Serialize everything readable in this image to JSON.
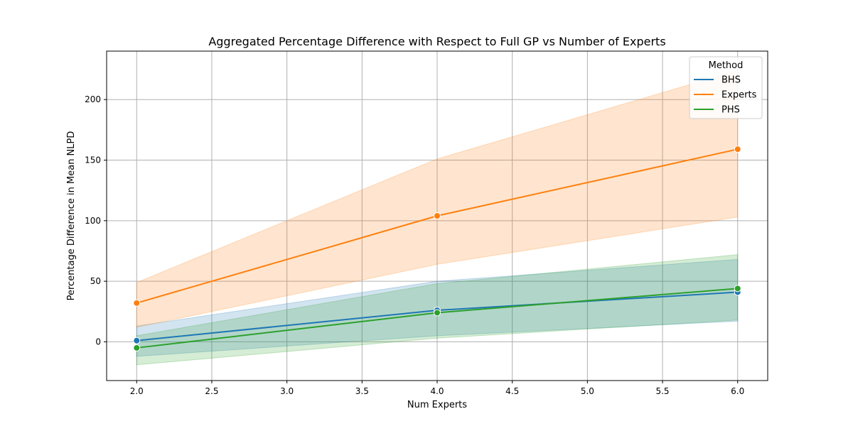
{
  "chart_data": {
    "type": "line",
    "title": "Aggregated Percentage Difference with Respect to Full GP vs Number of Experts",
    "xlabel": "Num Experts",
    "ylabel": "Percentage Difference in Mean NLPD",
    "xlim": [
      1.8,
      6.2
    ],
    "ylim": [
      -32,
      240
    ],
    "xticks": [
      2.0,
      2.5,
      3.0,
      3.5,
      4.0,
      4.5,
      5.0,
      5.5,
      6.0
    ],
    "xtick_labels": [
      "2.0",
      "2.5",
      "3.0",
      "3.5",
      "4.0",
      "4.5",
      "5.0",
      "5.5",
      "6.0"
    ],
    "yticks": [
      0,
      50,
      100,
      150,
      200
    ],
    "ytick_labels": [
      "0",
      "50",
      "100",
      "150",
      "200"
    ],
    "grid": true,
    "legend": {
      "title": "Method",
      "position": "top-right"
    },
    "series": [
      {
        "name": "BHS",
        "color": "#1f77b4",
        "x": [
          2,
          4,
          6
        ],
        "y": [
          1,
          26,
          41
        ],
        "ci_low": [
          -12,
          5,
          17
        ],
        "ci_high": [
          13,
          50,
          68
        ]
      },
      {
        "name": "Experts",
        "color": "#ff7f0e",
        "x": [
          2,
          4,
          6
        ],
        "y": [
          32,
          104,
          159
        ],
        "ci_low": [
          12,
          64,
          103
        ],
        "ci_high": [
          49,
          151,
          224
        ]
      },
      {
        "name": "PHS",
        "color": "#2ca02c",
        "x": [
          2,
          4,
          6
        ],
        "y": [
          -5,
          24,
          44
        ],
        "ci_low": [
          -19,
          3,
          18
        ],
        "ci_high": [
          5,
          48,
          72
        ]
      }
    ]
  }
}
